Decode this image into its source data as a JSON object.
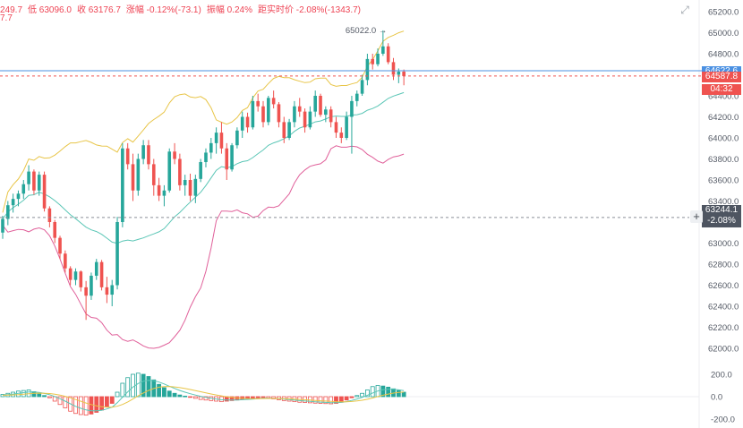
{
  "header": {
    "partial_value": "249.7",
    "low": "低 63096.0",
    "close": "收 63176.7",
    "change": "涨幅 -0.12%(-73.1)",
    "amplitude": "振幅 0.24%",
    "distance": "距实时价 -2.08%(-1343.7)",
    "line2": "7.7"
  },
  "tags": {
    "current_price": "64587.8",
    "countdown": "04:32",
    "blue_tag": "64622.6",
    "cursor_price": "63244.1",
    "cursor_pct": "-2.08%"
  },
  "colors": {
    "up": "#26a69a",
    "down": "#ef5350",
    "upper_band": "#e8c548",
    "mid_band": "#5bc6b6",
    "lower_band": "#e0609a",
    "blue_line": "#4a90e2"
  },
  "icons": {
    "expand": "expand-icon",
    "crosshair": "crosshair-plus-icon"
  },
  "chart_data": [
    {
      "type": "candlestick",
      "ylim": [
        61800,
        65400
      ],
      "y_ticks": [
        62000,
        62200,
        62400,
        62600,
        62800,
        63000,
        63200,
        63400,
        63600,
        63800,
        64000,
        64200,
        64400,
        64600,
        64800,
        65000,
        65200
      ],
      "annotation": "65022.0",
      "grid": false,
      "candles": [
        [
          63100,
          63260,
          63040,
          63230
        ],
        [
          63230,
          63400,
          63170,
          63360
        ],
        [
          63360,
          63470,
          63290,
          63420
        ],
        [
          63420,
          63500,
          63350,
          63470
        ],
        [
          63470,
          63600,
          63420,
          63560
        ],
        [
          63560,
          63740,
          63500,
          63680
        ],
        [
          63680,
          63700,
          63460,
          63500
        ],
        [
          63500,
          63680,
          63450,
          63650
        ],
        [
          63650,
          63680,
          63300,
          63330
        ],
        [
          63330,
          63350,
          63150,
          63200
        ],
        [
          63200,
          63220,
          63000,
          63050
        ],
        [
          63050,
          63070,
          62850,
          62900
        ],
        [
          62900,
          62930,
          62720,
          62760
        ],
        [
          62760,
          62780,
          62600,
          62650
        ],
        [
          62650,
          62760,
          62600,
          62730
        ],
        [
          62730,
          62740,
          62540,
          62580
        ],
        [
          62580,
          62640,
          62270,
          62500
        ],
        [
          62500,
          62720,
          62460,
          62690
        ],
        [
          62690,
          62850,
          62650,
          62820
        ],
        [
          62820,
          62840,
          62550,
          62580
        ],
        [
          62580,
          62680,
          62430,
          62510
        ],
        [
          62510,
          62650,
          62400,
          62600
        ],
        [
          62600,
          63250,
          62560,
          63200
        ],
        [
          63200,
          63950,
          63150,
          63900
        ],
        [
          63900,
          63950,
          63700,
          63750
        ],
        [
          63750,
          63850,
          63400,
          63500
        ],
        [
          63500,
          63850,
          63450,
          63800
        ],
        [
          63800,
          63980,
          63750,
          63930
        ],
        [
          63930,
          63980,
          63700,
          63750
        ],
        [
          63750,
          63800,
          63450,
          63550
        ],
        [
          63550,
          63620,
          63400,
          63450
        ],
        [
          63450,
          63550,
          63350,
          63500
        ],
        [
          63500,
          63900,
          63480,
          63870
        ],
        [
          63870,
          63950,
          63750,
          63800
        ],
        [
          63800,
          63850,
          63500,
          63550
        ],
        [
          63550,
          63650,
          63450,
          63600
        ],
        [
          63600,
          63660,
          63400,
          63450
        ],
        [
          63450,
          63650,
          63380,
          63610
        ],
        [
          63610,
          63800,
          63580,
          63770
        ],
        [
          63770,
          63900,
          63720,
          63860
        ],
        [
          63860,
          64000,
          63800,
          63950
        ],
        [
          63950,
          64100,
          63850,
          64050
        ],
        [
          64050,
          64150,
          63850,
          63900
        ],
        [
          63900,
          63950,
          63600,
          63700
        ],
        [
          63700,
          63950,
          63680,
          63930
        ],
        [
          63930,
          64100,
          63900,
          64070
        ],
        [
          64070,
          64250,
          64000,
          64200
        ],
        [
          64200,
          64240,
          64050,
          64100
        ],
        [
          64100,
          64400,
          64080,
          64350
        ],
        [
          64350,
          64420,
          64250,
          64300
        ],
        [
          64300,
          64350,
          64100,
          64150
        ],
        [
          64150,
          64400,
          64120,
          64380
        ],
        [
          64380,
          64450,
          64280,
          64320
        ],
        [
          64320,
          64340,
          64100,
          64150
        ],
        [
          64150,
          64200,
          63950,
          64000
        ],
        [
          64000,
          64180,
          63980,
          64150
        ],
        [
          64150,
          64350,
          64100,
          64300
        ],
        [
          64300,
          64380,
          64200,
          64250
        ],
        [
          64250,
          64280,
          64050,
          64100
        ],
        [
          64100,
          64300,
          64080,
          64250
        ],
        [
          64250,
          64450,
          64200,
          64400
        ],
        [
          64400,
          64420,
          64200,
          64220
        ],
        [
          64220,
          64300,
          64150,
          64270
        ],
        [
          64270,
          64300,
          64100,
          64150
        ],
        [
          64150,
          64200,
          64000,
          64050
        ],
        [
          64050,
          64100,
          63950,
          64000
        ],
        [
          64000,
          64250,
          63980,
          64200
        ],
        [
          64200,
          64400,
          63850,
          64350
        ],
        [
          64350,
          64450,
          64300,
          64420
        ],
        [
          64420,
          64600,
          64400,
          64550
        ],
        [
          64550,
          64800,
          64500,
          64750
        ],
        [
          64750,
          64800,
          64650,
          64700
        ],
        [
          64700,
          64850,
          64680,
          64800
        ],
        [
          64800,
          65022,
          64780,
          64870
        ],
        [
          64870,
          64900,
          64700,
          64720
        ],
        [
          64720,
          64760,
          64550,
          64600
        ],
        [
          64600,
          64660,
          64520,
          64630
        ],
        [
          64630,
          64650,
          64500,
          64587.8
        ]
      ]
    },
    {
      "type": "bar",
      "y_ticks": [
        200.0,
        0.0,
        -200.0
      ],
      "ylim": [
        -230,
        230
      ],
      "macd": [
        20,
        30,
        40,
        50,
        55,
        60,
        45,
        30,
        10,
        -10,
        -40,
        -70,
        -100,
        -130,
        -150,
        -160,
        -165,
        -155,
        -140,
        -120,
        -90,
        -60,
        40,
        120,
        170,
        200,
        210,
        200,
        180,
        150,
        110,
        80,
        50,
        30,
        15,
        5,
        -5,
        -15,
        -25,
        -30,
        -35,
        -40,
        -45,
        -40,
        -35,
        -30,
        -25,
        -20,
        -15,
        -10,
        -8,
        -12,
        -20,
        -28,
        -35,
        -40,
        -45,
        -50,
        -52,
        -55,
        -58,
        -60,
        -62,
        -64,
        -60,
        -50,
        -30,
        -10,
        10,
        30,
        60,
        90,
        100,
        95,
        85,
        70,
        55,
        40
      ]
    }
  ]
}
